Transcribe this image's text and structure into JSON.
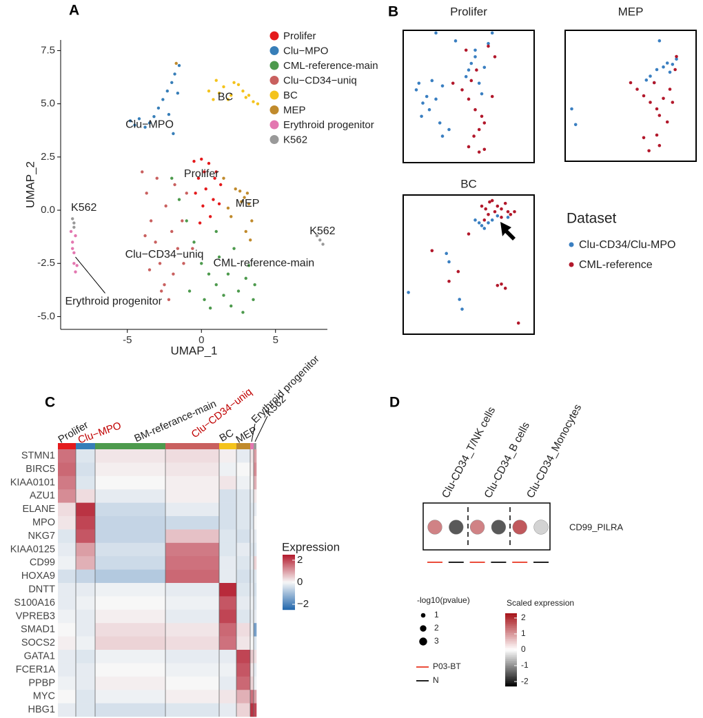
{
  "chart_data": [
    {
      "type": "scatter",
      "panel_label": "A",
      "xlabel": "UMAP_1",
      "ylabel": "UMAP_2",
      "xlim": [
        -9.5,
        8.5
      ],
      "ylim": [
        -5.6,
        8
      ],
      "xticks": [
        -5,
        0,
        5
      ],
      "yticks": [
        7.5,
        {
          "value": 5,
          "label": "5.0"
        },
        2.5,
        {
          "value": 0,
          "label": "0.0"
        },
        -2.5,
        {
          "value": -5,
          "label": "-5.0"
        }
      ],
      "series": [
        {
          "name": "Prolifer",
          "color": "#e41a1c",
          "x": [
            -0.5,
            0,
            0.5,
            1,
            1.3,
            -0.2,
            0.3,
            0.8,
            0.1,
            -0.4,
            0.6,
            1.2,
            0.2,
            -0.1,
            0.9
          ],
          "y": [
            2.3,
            2.4,
            2.2,
            1.8,
            1.2,
            1.5,
            1.0,
            0.5,
            0.2,
            0.8,
            -0.3,
            0.3,
            1.8,
            -0.6,
            1.5
          ]
        },
        {
          "name": "Clu−MPO",
          "color": "#377eb8",
          "x": [
            -4.8,
            -4.5,
            -4.2,
            -3.8,
            -3.5,
            -3.2,
            -2.9,
            -2.6,
            -2.3,
            -2.0,
            -1.8,
            -1.6,
            -2.2,
            -1.9,
            -1.5
          ],
          "y": [
            4.2,
            4.0,
            4.3,
            3.9,
            4.1,
            4.4,
            4.8,
            5.2,
            5.6,
            6.0,
            6.4,
            5.5,
            4.5,
            3.6,
            6.8
          ]
        },
        {
          "name": "CML-reference-main",
          "color": "#4d9a4d",
          "x": [
            -2,
            -1.5,
            -1,
            -0.5,
            0,
            0.5,
            1,
            1.5,
            2,
            2.5,
            3,
            3.5,
            0.2,
            1.2,
            2.2,
            3.2,
            -0.8,
            0.6,
            1.8,
            2.8,
            3.6,
            1
          ],
          "y": [
            1.5,
            0.5,
            -0.5,
            -1.5,
            -2.5,
            -3,
            -3.5,
            -4,
            -4.5,
            -3.8,
            -3.2,
            -4.2,
            -4.2,
            -2.2,
            -1.8,
            -2.6,
            -3.8,
            -4.6,
            -3,
            -4.8,
            -3.5,
            -1
          ]
        },
        {
          "name": "Clu−CD34−uniq",
          "color": "#c9605f",
          "x": [
            -4,
            -3.7,
            -3.4,
            -3.1,
            -2.8,
            -2.5,
            -2.2,
            -1.9,
            -1.6,
            -1.3,
            -1,
            -3.5,
            -3,
            -2.4,
            -1.8,
            -1.2,
            -3.8,
            -2.7,
            -2,
            -0.6
          ],
          "y": [
            1.8,
            0.8,
            -0.5,
            -1.5,
            -2.5,
            -3.5,
            -4.2,
            -3,
            -1.8,
            -0.5,
            0.8,
            -2.8,
            1.5,
            0.2,
            1.2,
            -2.5,
            -1.2,
            -3.8,
            -1,
            -1.8
          ]
        },
        {
          "name": "BC",
          "color": "#f4c31c",
          "x": [
            0.5,
            1,
            1.5,
            2,
            2.5,
            3,
            3.5,
            3.8,
            1.2,
            2.2,
            2.8,
            0.8,
            1.8,
            3.2
          ],
          "y": [
            5.6,
            6.1,
            5.8,
            5.4,
            5.9,
            5.3,
            5.1,
            5.0,
            5.5,
            6.0,
            5.6,
            5.2,
            5.2,
            5.4
          ]
        },
        {
          "name": "MEP",
          "color": "#c08a2c",
          "x": [
            2.3,
            2.6,
            2.9,
            3.2,
            3.4,
            3.0,
            2.7,
            1.8,
            1.5,
            3.3,
            3.1,
            2.0,
            -1.7
          ],
          "y": [
            1.0,
            0.9,
            0.6,
            0.3,
            -0.5,
            -1.0,
            0.4,
            0.1,
            1.5,
            -1.4,
            0.8,
            -0.3,
            6.9
          ]
        },
        {
          "name": "Erythroid progenitor",
          "color": "#e377b0",
          "x": [
            -8.8,
            -8.7,
            -8.6,
            -8.6,
            -8.5,
            -8.7,
            -8.4,
            -8.5
          ],
          "y": [
            -1.0,
            -1.5,
            -2.0,
            -2.5,
            -2.9,
            -1.8,
            -2.6,
            -1.2
          ]
        },
        {
          "name": "K562",
          "color": "#999999",
          "x": [
            -8.7,
            -8.6,
            -8.6,
            7.8,
            8.0,
            8.2
          ],
          "y": [
            -0.4,
            -0.6,
            -0.8,
            -1.2,
            -1.4,
            -1.6
          ]
        }
      ],
      "annotations": [
        "BC",
        "Clu−MPO",
        "Prolifer",
        "MEP",
        "K562",
        "K562",
        "Clu−CD34−uniq",
        "CML-reference-main",
        "Erythroid progenitor"
      ]
    },
    {
      "type": "scatter-panels",
      "panel_label": "B",
      "legend_title": "Dataset",
      "xlim": [
        0,
        100
      ],
      "ylim": [
        0,
        100
      ],
      "series": [
        {
          "name": "Clu-CD34/Clu-MPO",
          "color": "#3a7fc1"
        },
        {
          "name": "CML-reference",
          "color": "#b2182b"
        }
      ],
      "panels": [
        {
          "title": "Prolifer",
          "points": [
            {
              "x": [
                10,
                12,
                15,
                18,
                20,
                22,
                25,
                14,
                28,
                35,
                30,
                48,
                50,
                52,
                55,
                58,
                60,
                62,
                55,
                65,
                40,
                68,
                25,
                30
              ],
              "y": [
                55,
                60,
                45,
                50,
                40,
                62,
                48,
                35,
                30,
                25,
                58,
                65,
                70,
                75,
                85,
                60,
                52,
                72,
                80,
                90,
                92,
                98,
                98,
                20
              ]
            },
            {
              "x": [
                38,
                45,
                50,
                55,
                60,
                62,
                58,
                54,
                48,
                65,
                70,
                52,
                56,
                62,
                50,
                68,
                58
              ],
              "y": [
                60,
                55,
                48,
                40,
                35,
                30,
                25,
                20,
                85,
                88,
                80,
                62,
                70,
                10,
                12,
                50,
                8
              ]
            }
          ]
        },
        {
          "title": "MEP",
          "points": [
            {
              "x": [
                5,
                8,
                65,
                70,
                75,
                80,
                78,
                82,
                85,
                72,
                68,
                62
              ],
              "y": [
                40,
                28,
                65,
                70,
                72,
                68,
                75,
                74,
                78,
                92,
                60,
                62
              ]
            },
            {
              "x": [
                50,
                55,
                60,
                65,
                68,
                70,
                72,
                75,
                78,
                80,
                82,
                84,
                70,
                72,
                85,
                60,
                64
              ],
              "y": [
                60,
                55,
                50,
                45,
                60,
                40,
                35,
                48,
                30,
                55,
                45,
                70,
                20,
                12,
                80,
                18,
                8
              ]
            }
          ]
        },
        {
          "title": "BC",
          "points": [
            {
              "x": [
                55,
                58,
                60,
                62,
                65,
                68,
                72,
                80,
                33,
                35,
                43,
                45,
                4
              ],
              "y": [
                82,
                80,
                78,
                76,
                80,
                82,
                85,
                84,
                58,
                52,
                25,
                18,
                30
              ]
            },
            {
              "x": [
                60,
                63,
                66,
                70,
                72,
                75,
                78,
                80,
                82,
                85,
                65,
                68,
                75,
                62,
                72,
                75,
                78,
                88,
                50,
                35,
                22,
                42
              ],
              "y": [
                92,
                90,
                95,
                88,
                92,
                90,
                94,
                88,
                86,
                88,
                86,
                96,
                84,
                82,
                35,
                36,
                33,
                8,
                72,
                38,
                60,
                45
              ]
            }
          ]
        }
      ]
    },
    {
      "type": "heatmap",
      "panel_label": "C",
      "groups": [
        {
          "name": "Prolifer",
          "color": "#e41a1c"
        },
        {
          "name": "Clu−MPO",
          "color": "#377eb8",
          "label_color": "#c00000"
        },
        {
          "name": "BM-referance-main",
          "color": "#4d9a4d"
        },
        {
          "name": "Clu−CD34−uniq",
          "color": "#c9605f",
          "label_color": "#c00000"
        },
        {
          "name": "BC",
          "color": "#f4c31c"
        },
        {
          "name": "MEP",
          "color": "#c08a2c"
        },
        {
          "name": "Erythroid progenitor",
          "color": "#e377b0"
        },
        {
          "name": "K562",
          "color": "#999999"
        }
      ],
      "rows": [
        "STMN1",
        "BIRC5",
        "KIAA0101",
        "AZU1",
        "ELANE",
        "MPO",
        "NKG7",
        "KIAA0125",
        "CD99",
        "HOXA9",
        "DNTT",
        "S100A16",
        "VPREB3",
        "SMAD1",
        "SOCS2",
        "GATA1",
        "FCER1A",
        "PPBP",
        "MYC",
        "HBG1"
      ],
      "values": [
        [
          1.5,
          -0.3,
          0.2,
          0.3,
          0.1,
          -0.2,
          0.2,
          1.0
        ],
        [
          1.6,
          -0.4,
          0.1,
          0.2,
          -0.1,
          0.0,
          0.1,
          1.2
        ],
        [
          1.4,
          -0.3,
          0.0,
          0.1,
          0.2,
          -0.1,
          0.0,
          0.8
        ],
        [
          1.2,
          0.3,
          -0.2,
          0.1,
          -0.4,
          -0.3,
          -0.2,
          0.2
        ],
        [
          0.3,
          2.2,
          -0.5,
          -0.2,
          -0.4,
          -0.3,
          -0.3,
          -0.2
        ],
        [
          0.2,
          2.0,
          -0.6,
          -0.5,
          -0.4,
          -0.3,
          -0.3,
          0.0
        ],
        [
          -0.3,
          1.8,
          -0.6,
          0.6,
          -0.3,
          -0.4,
          -0.2,
          -0.2
        ],
        [
          -0.2,
          1.0,
          -0.4,
          1.4,
          -0.3,
          -0.2,
          -0.3,
          -0.3
        ],
        [
          -0.1,
          0.8,
          -0.5,
          1.5,
          -0.2,
          -0.3,
          -0.2,
          0.4
        ],
        [
          -0.4,
          -0.6,
          -0.8,
          1.6,
          -0.2,
          -0.4,
          -0.3,
          -0.3
        ],
        [
          -0.2,
          -0.2,
          -0.1,
          -0.2,
          2.3,
          -0.3,
          -0.2,
          -0.4
        ],
        [
          -0.2,
          -0.1,
          0.0,
          -0.1,
          1.8,
          -0.2,
          -0.1,
          -0.3
        ],
        [
          -0.1,
          -0.2,
          0.1,
          -0.2,
          2.0,
          -0.3,
          -0.2,
          -0.2
        ],
        [
          0.0,
          -0.2,
          0.3,
          0.2,
          1.6,
          0.3,
          -0.1,
          -1.5
        ],
        [
          0.1,
          -0.1,
          0.4,
          0.3,
          1.5,
          0.2,
          0.0,
          -0.3
        ],
        [
          -0.2,
          -0.3,
          -0.1,
          -0.2,
          -0.2,
          2.0,
          0.5,
          0.3
        ],
        [
          -0.2,
          -0.2,
          0.0,
          -0.1,
          -0.1,
          1.8,
          0.2,
          -0.2
        ],
        [
          -0.1,
          -0.2,
          0.1,
          0.0,
          -0.2,
          1.6,
          0.4,
          -0.1
        ],
        [
          0.0,
          -0.3,
          -0.1,
          0.1,
          0.2,
          0.8,
          1.5,
          1.0
        ],
        [
          -0.2,
          -0.3,
          -0.4,
          -0.3,
          -0.2,
          0.4,
          2.2,
          2.0
        ]
      ],
      "legend_title": "Expression",
      "clim": [
        -2.5,
        2.5
      ],
      "cticks": [
        2,
        0,
        {
          "value": -2,
          "label": "−2"
        }
      ]
    },
    {
      "type": "dotplot",
      "panel_label": "D",
      "categories": [
        "Clu-CD34_T/NK cells",
        "Clu-CD34_B cells",
        "Clu-CD34_Monocytes"
      ],
      "row": "CD99_PILRA",
      "series": [
        {
          "name": "P03-BT",
          "color": "#e8321e",
          "values": [
            1.2,
            1.2,
            1.6
          ],
          "sizes": [
            3,
            3,
            3
          ]
        },
        {
          "name": "N",
          "color": "#000000",
          "values": [
            -1.5,
            -1.5,
            -0.4
          ],
          "sizes": [
            3,
            3,
            3
          ]
        }
      ],
      "size_title": "-log10(pvalue)",
      "size_ticks": [
        1,
        2,
        3
      ],
      "color_title": "Scaled expression",
      "clim": [
        -2.3,
        2.3
      ],
      "cticks": [
        2,
        1,
        0,
        -1,
        -2
      ]
    }
  ]
}
